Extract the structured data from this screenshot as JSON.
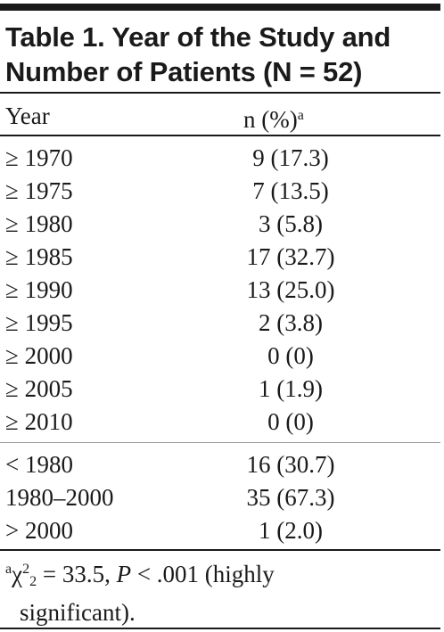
{
  "table": {
    "title_line1": "Table 1. Year of the Study and",
    "title_line2": "Number of Patients (N = 52)",
    "header": {
      "year": "Year",
      "n": "n (%)",
      "n_sup": "a"
    },
    "rows": [
      {
        "year": "≥ 1970",
        "n": "9 (17.3)"
      },
      {
        "year": "≥ 1975",
        "n": "7 (13.5)"
      },
      {
        "year": "≥ 1980",
        "n": "3 (5.8)"
      },
      {
        "year": "≥ 1985",
        "n": "17 (32.7)"
      },
      {
        "year": "≥ 1990",
        "n": "13 (25.0)"
      },
      {
        "year": "≥ 1995",
        "n": "2 (3.8)"
      },
      {
        "year": "≥ 2000",
        "n": "0 (0)"
      },
      {
        "year": "≥ 2005",
        "n": "1 (1.9)"
      },
      {
        "year": "≥ 2010",
        "n": "0 (0)"
      }
    ],
    "summary_rows": [
      {
        "year": "< 1980",
        "n": "16 (30.7)"
      },
      {
        "year": "1980–2000",
        "n": "35 (67.3)"
      },
      {
        "year": "> 2000",
        "n": "1 (2.0)"
      }
    ],
    "footnote": {
      "marker": "a",
      "chi": "χ",
      "chi_sup": "2",
      "chi_sub": "2",
      "stat": " = 33.5, ",
      "p_label": "P",
      "p_value": " < .001 (highly",
      "line2": "significant)."
    }
  }
}
